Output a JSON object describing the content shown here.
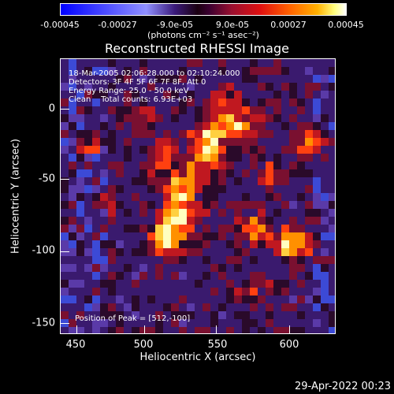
{
  "colorbar": {
    "ticks": [
      "-0.00045",
      "-0.00027",
      "-9.0e-05",
      "9.0e-05",
      "0.00027",
      "0.00045"
    ],
    "units": "(photons cm⁻² s⁻¹ asec⁻²)"
  },
  "plot": {
    "title": "Reconstructed RHESSI Image",
    "xlabel": "Heliocentric X (arcsec)",
    "ylabel": "Heliocentric Y (arcsec)",
    "xticks": [
      "450",
      "500",
      "550",
      "600"
    ],
    "yticks": [
      "0",
      "-50",
      "-100",
      "-150"
    ]
  },
  "annotations": {
    "time": "18-Mar-2005 02:06:28.000 to 02:10:24.000",
    "detectors": "Detectors: 3F 4F 5F 6F 7F 8F, Att 0",
    "energy": "Energy Range: 25.0 - 50.0 keV",
    "clean": "Clean    Total counts: 6.93E+03",
    "peak": "Position of Peak = [512,-100]"
  },
  "footer": {
    "date": "29-Apr-2022 00:23"
  }
}
